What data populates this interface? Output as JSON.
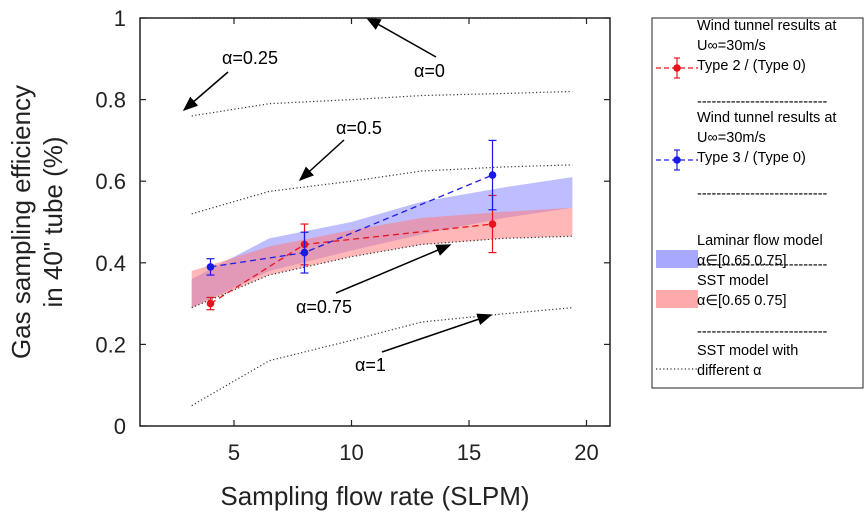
{
  "chart_data": {
    "type": "line",
    "xlabel": "Sampling flow rate (SLPM)",
    "ylabel_line1": "Gas sampling efficiency",
    "ylabel_line2": "in 40\" tube (%)",
    "xlim": [
      1,
      21
    ],
    "ylim": [
      0,
      1
    ],
    "xticks": [
      5,
      10,
      15,
      20
    ],
    "yticks": [
      0,
      0.2,
      0.4,
      0.6,
      0.8,
      1
    ],
    "ytick_labels": [
      "0",
      "0.2",
      "0.4",
      "0.6",
      "0.8",
      "1"
    ],
    "xtick_labels": [
      "5",
      "10",
      "15",
      "20"
    ],
    "grid": false,
    "legend_position": "outside-right",
    "alpha_curves": [
      {
        "label": "α=0",
        "x": [
          3.2,
          6.5,
          10,
          13,
          16.5,
          19.4
        ],
        "y": [
          1.0,
          1.0,
          1.0,
          1.0,
          1.0,
          1.0
        ]
      },
      {
        "label": "α=0.25",
        "x": [
          3.2,
          6.5,
          10,
          13,
          16.5,
          19.4
        ],
        "y": [
          0.76,
          0.79,
          0.8,
          0.81,
          0.815,
          0.82
        ]
      },
      {
        "label": "α=0.5",
        "x": [
          3.2,
          6.5,
          10,
          13,
          16.5,
          19.4
        ],
        "y": [
          0.52,
          0.575,
          0.6,
          0.625,
          0.635,
          0.64
        ]
      },
      {
        "label": "α=0.75",
        "x": [
          3.2,
          6.5,
          10,
          13,
          16.5,
          19.4
        ],
        "y": [
          0.29,
          0.37,
          0.415,
          0.445,
          0.46,
          0.465
        ]
      },
      {
        "label": "α=1",
        "x": [
          3.2,
          6.5,
          10,
          13,
          16.5,
          19.4
        ],
        "y": [
          0.05,
          0.16,
          0.21,
          0.255,
          0.275,
          0.29
        ]
      }
    ],
    "bands": [
      {
        "name": "Laminar flow model",
        "range_label": "α∈[0.65 0.75]",
        "color": "#7b7bff",
        "opacity": 0.5,
        "x": [
          3.2,
          6.5,
          10,
          13,
          16.5,
          19.4
        ],
        "upper": [
          0.36,
          0.46,
          0.5,
          0.55,
          0.585,
          0.61
        ],
        "lower": [
          0.29,
          0.38,
          0.43,
          0.47,
          0.51,
          0.535
        ]
      },
      {
        "name": "SST model",
        "range_label": "α∈[0.65 0.75]",
        "color": "#ff7b7b",
        "opacity": 0.55,
        "x": [
          3.2,
          6.5,
          10,
          13,
          16.5,
          19.4
        ],
        "upper": [
          0.38,
          0.44,
          0.48,
          0.51,
          0.525,
          0.535
        ],
        "lower": [
          0.29,
          0.37,
          0.415,
          0.445,
          0.46,
          0.465
        ]
      }
    ],
    "series": [
      {
        "name": "Wind tunnel results at U∞=30m/s Type 2 / (Type 0)",
        "color": "#e8141b",
        "x": [
          4,
          8,
          16
        ],
        "y": [
          0.3,
          0.445,
          0.495
        ],
        "err": [
          0.015,
          0.05,
          0.07
        ]
      },
      {
        "name": "Wind tunnel results at U∞=30m/s Type 3 / (Type 0)",
        "color": "#1a1ae6",
        "x": [
          4,
          8,
          16
        ],
        "y": [
          0.39,
          0.425,
          0.615
        ],
        "err": [
          0.02,
          0.05,
          0.085
        ]
      }
    ],
    "annotations": [
      {
        "text": "α=0"
      },
      {
        "text": "α=0.25"
      },
      {
        "text": "α=0.5"
      },
      {
        "text": "α=0.75"
      },
      {
        "text": "α=1"
      }
    ],
    "legend": {
      "items": [
        {
          "kind": "marker",
          "color": "#e8141b",
          "lines": [
            "Wind tunnel results at",
            "U∞=30m/s",
            "Type 2 / (Type 0)"
          ]
        },
        {
          "kind": "marker",
          "color": "#1a1ae6",
          "lines": [
            "Wind tunnel results at",
            "U∞=30m/s",
            "Type 3 / (Type 0)"
          ]
        },
        {
          "kind": "patch",
          "color": "#a8a8ff",
          "lines": [
            "Laminar flow model",
            "α∈[0.65 0.75]"
          ]
        },
        {
          "kind": "patch",
          "color": "#ffaaaa",
          "lines": [
            "SST model",
            "α∈[0.65 0.75]"
          ]
        },
        {
          "kind": "dotted",
          "color": "#333333",
          "lines": [
            "SST model with",
            "different α"
          ]
        }
      ],
      "separator": "---------------------------"
    }
  }
}
